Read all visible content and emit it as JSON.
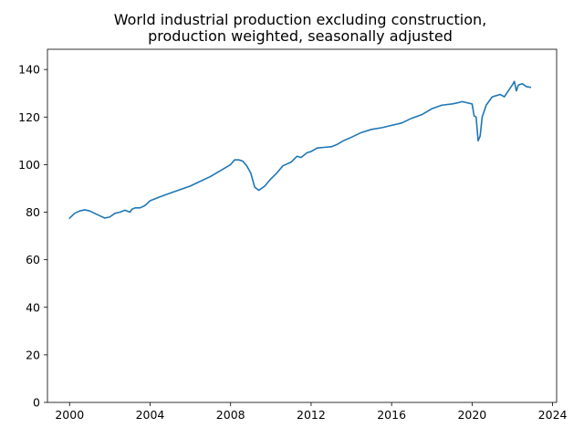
{
  "chart_data": {
    "type": "line",
    "title_line1": "World industrial production excluding construction,",
    "title_line2": "production weighted, seasonally adjusted",
    "xlabel": "",
    "ylabel": "",
    "x_ticks": [
      "2000",
      "2004",
      "2008",
      "2012",
      "2016",
      "2020",
      "2024"
    ],
    "y_ticks": [
      "0",
      "20",
      "40",
      "60",
      "80",
      "100",
      "120",
      "140"
    ],
    "xlim": [
      1998.9,
      2024.2
    ],
    "ylim": [
      0,
      148.5
    ],
    "grid": false,
    "line_color": "#1f77b4",
    "series": [
      {
        "x": [
          2000.0,
          2000.25,
          2000.5,
          2000.75,
          2001.0,
          2001.25,
          2001.5,
          2001.75,
          2002.0,
          2002.25,
          2002.5,
          2002.75,
          2003.0,
          2003.1,
          2003.25,
          2003.5,
          2003.75,
          2004.0,
          2004.5,
          2005.0,
          2005.5,
          2006.0,
          2006.5,
          2007.0,
          2007.5,
          2008.0,
          2008.2,
          2008.4,
          2008.6,
          2008.8,
          2009.0,
          2009.2,
          2009.4,
          2009.7,
          2010.0,
          2010.3,
          2010.6,
          2011.0,
          2011.3,
          2011.5,
          2011.8,
          2012.0,
          2012.3,
          2012.7,
          2013.0,
          2013.3,
          2013.6,
          2014.0,
          2014.5,
          2015.0,
          2015.5,
          2016.0,
          2016.5,
          2017.0,
          2017.5,
          2018.0,
          2018.5,
          2019.0,
          2019.3,
          2019.5,
          2019.75,
          2020.0,
          2020.1,
          2020.2,
          2020.3,
          2020.4,
          2020.5,
          2020.7,
          2021.0,
          2021.2,
          2021.4,
          2021.6,
          2021.8,
          2022.0,
          2022.1,
          2022.2,
          2022.3,
          2022.5,
          2022.7,
          2022.9
        ],
        "y": [
          77.5,
          79.5,
          80.5,
          81.0,
          80.5,
          79.5,
          78.5,
          77.5,
          78.0,
          79.5,
          80.0,
          80.8,
          80.0,
          81.2,
          81.8,
          81.8,
          82.8,
          84.8,
          86.5,
          88.0,
          89.5,
          91.0,
          93.0,
          95.0,
          97.5,
          100.0,
          102.0,
          102.0,
          101.5,
          99.5,
          96.5,
          90.5,
          89.2,
          91.0,
          94.0,
          96.5,
          99.5,
          101.0,
          103.5,
          103.0,
          105.0,
          105.5,
          107.0,
          107.3,
          107.5,
          108.5,
          110.0,
          111.5,
          113.5,
          114.8,
          115.5,
          116.5,
          117.5,
          119.5,
          121.0,
          123.5,
          125.0,
          125.5,
          126.0,
          126.5,
          126.0,
          125.5,
          120.5,
          120.0,
          110.0,
          112.0,
          120.0,
          125.0,
          128.5,
          129.0,
          129.5,
          128.5,
          131.0,
          133.5,
          135.0,
          131.0,
          133.5,
          134.0,
          132.8,
          132.5
        ]
      }
    ]
  }
}
